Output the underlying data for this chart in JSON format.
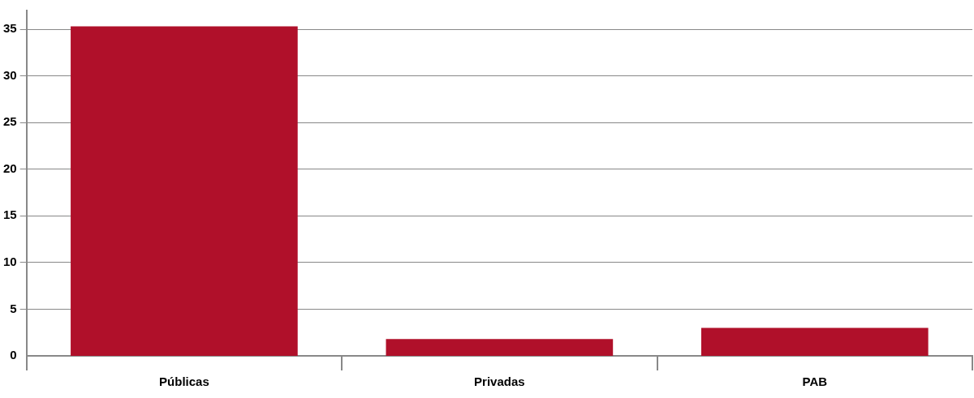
{
  "chart_data": {
    "type": "bar",
    "categories": [
      "Públicas",
      "Privadas",
      "PAB"
    ],
    "values": [
      35.3,
      1.8,
      3.0
    ],
    "color": "#b0102a",
    "ylim": [
      0,
      37
    ],
    "yticks": [
      0,
      5,
      10,
      15,
      20,
      25,
      30,
      35
    ],
    "grid": "y",
    "legend": false
  }
}
